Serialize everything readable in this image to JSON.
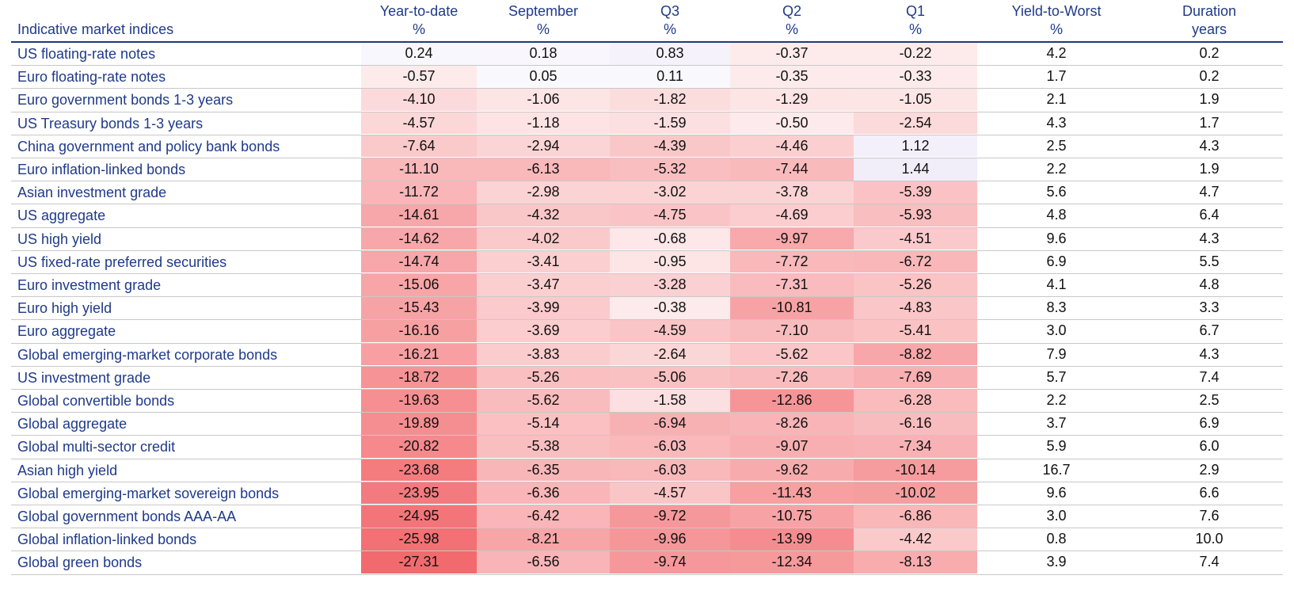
{
  "chart_data": {
    "type": "table",
    "title": "",
    "columns": [
      {
        "label": "Indicative market indices",
        "unit": ""
      },
      {
        "label": "Year-to-date",
        "unit": "%"
      },
      {
        "label": "September",
        "unit": "%"
      },
      {
        "label": "Q3",
        "unit": "%"
      },
      {
        "label": "Q2",
        "unit": "%"
      },
      {
        "label": "Q1",
        "unit": "%"
      },
      {
        "label": "Yield-to-Worst",
        "unit": "%"
      },
      {
        "label": "Duration",
        "unit": "years"
      }
    ],
    "colors": {
      "header_text": "#1f3a8a",
      "label_text": "#1f3a8a",
      "rule": "#1f3a7a",
      "heat_negative": "#f26a6e",
      "heat_positive": "#f4f2fa"
    },
    "rows": [
      {
        "name": "US floating-rate notes",
        "values": [
          "0.24",
          "0.18",
          "0.83",
          "-0.37",
          "-0.22",
          "4.2",
          "0.2"
        ]
      },
      {
        "name": "Euro floating-rate notes",
        "values": [
          "-0.57",
          "0.05",
          "0.11",
          "-0.35",
          "-0.33",
          "1.7",
          "0.2"
        ]
      },
      {
        "name": "Euro government bonds 1-3 years",
        "values": [
          "-4.10",
          "-1.06",
          "-1.82",
          "-1.29",
          "-1.05",
          "2.1",
          "1.9"
        ]
      },
      {
        "name": "US Treasury bonds 1-3 years",
        "values": [
          "-4.57",
          "-1.18",
          "-1.59",
          "-0.50",
          "-2.54",
          "4.3",
          "1.7"
        ]
      },
      {
        "name": "China government and policy bank bonds",
        "values": [
          "-7.64",
          "-2.94",
          "-4.39",
          "-4.46",
          "1.12",
          "2.5",
          "4.3"
        ]
      },
      {
        "name": "Euro inflation-linked bonds",
        "values": [
          "-11.10",
          "-6.13",
          "-5.32",
          "-7.44",
          "1.44",
          "2.2",
          "1.9"
        ]
      },
      {
        "name": "Asian investment grade",
        "values": [
          "-11.72",
          "-2.98",
          "-3.02",
          "-3.78",
          "-5.39",
          "5.6",
          "4.7"
        ]
      },
      {
        "name": "US aggregate",
        "values": [
          "-14.61",
          "-4.32",
          "-4.75",
          "-4.69",
          "-5.93",
          "4.8",
          "6.4"
        ]
      },
      {
        "name": "US high yield",
        "values": [
          "-14.62",
          "-4.02",
          "-0.68",
          "-9.97",
          "-4.51",
          "9.6",
          "4.3"
        ]
      },
      {
        "name": "US fixed-rate preferred securities",
        "values": [
          "-14.74",
          "-3.41",
          "-0.95",
          "-7.72",
          "-6.72",
          "6.9",
          "5.5"
        ]
      },
      {
        "name": "Euro investment grade",
        "values": [
          "-15.06",
          "-3.47",
          "-3.28",
          "-7.31",
          "-5.26",
          "4.1",
          "4.8"
        ]
      },
      {
        "name": "Euro high yield",
        "values": [
          "-15.43",
          "-3.99",
          "-0.38",
          "-10.81",
          "-4.83",
          "8.3",
          "3.3"
        ]
      },
      {
        "name": "Euro aggregate",
        "values": [
          "-16.16",
          "-3.69",
          "-4.59",
          "-7.10",
          "-5.41",
          "3.0",
          "6.7"
        ]
      },
      {
        "name": "Global emerging-market corporate bonds",
        "values": [
          "-16.21",
          "-3.83",
          "-2.64",
          "-5.62",
          "-8.82",
          "7.9",
          "4.3"
        ]
      },
      {
        "name": "US investment grade",
        "values": [
          "-18.72",
          "-5.26",
          "-5.06",
          "-7.26",
          "-7.69",
          "5.7",
          "7.4"
        ]
      },
      {
        "name": "Global convertible bonds",
        "values": [
          "-19.63",
          "-5.62",
          "-1.58",
          "-12.86",
          "-6.28",
          "2.2",
          "2.5"
        ]
      },
      {
        "name": "Global aggregate",
        "values": [
          "-19.89",
          "-5.14",
          "-6.94",
          "-8.26",
          "-6.16",
          "3.7",
          "6.9"
        ]
      },
      {
        "name": "Global multi-sector credit",
        "values": [
          "-20.82",
          "-5.38",
          "-6.03",
          "-9.07",
          "-7.34",
          "5.9",
          "6.0"
        ]
      },
      {
        "name": "Asian high yield",
        "values": [
          "-23.68",
          "-6.35",
          "-6.03",
          "-9.62",
          "-10.14",
          "16.7",
          "2.9"
        ]
      },
      {
        "name": "Global emerging-market sovereign bonds",
        "values": [
          "-23.95",
          "-6.36",
          "-4.57",
          "-11.43",
          "-10.02",
          "9.6",
          "6.6"
        ]
      },
      {
        "name": "Global government bonds AAA-AA",
        "values": [
          "-24.95",
          "-6.42",
          "-9.72",
          "-10.75",
          "-6.86",
          "3.0",
          "7.6"
        ]
      },
      {
        "name": "Global inflation-linked bonds",
        "values": [
          "-25.98",
          "-8.21",
          "-9.96",
          "-13.99",
          "-4.42",
          "0.8",
          "10.0"
        ]
      },
      {
        "name": "Global green bonds",
        "values": [
          "-27.31",
          "-6.56",
          "-9.74",
          "-12.34",
          "-8.13",
          "3.9",
          "7.4"
        ]
      }
    ]
  }
}
